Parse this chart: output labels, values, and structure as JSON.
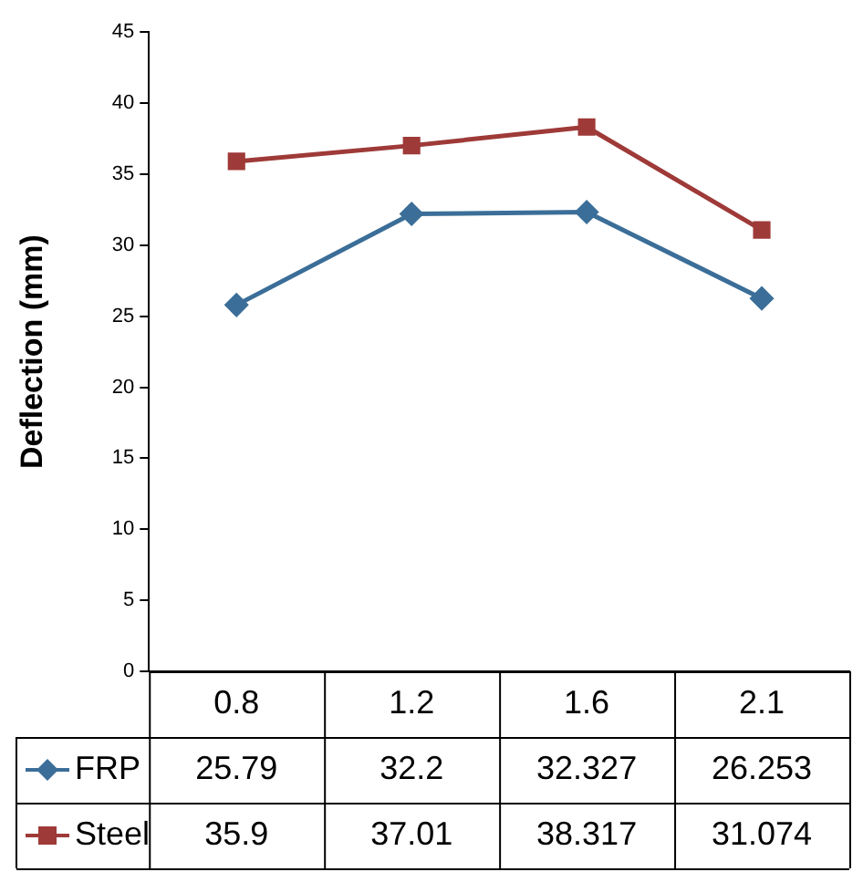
{
  "chart_data": {
    "type": "line",
    "ylabel": "Deflection (mm)",
    "categories": [
      "0.8",
      "1.2",
      "1.6",
      "2.1"
    ],
    "series": [
      {
        "name": "FRP",
        "color": "#3b6e98",
        "marker": "diamond",
        "values": [
          25.79,
          32.2,
          32.327,
          26.253
        ]
      },
      {
        "name": "Steel",
        "color": "#9e3a38",
        "marker": "square",
        "values": [
          35.9,
          37.01,
          38.317,
          31.074
        ]
      }
    ],
    "ylim": [
      0,
      45
    ],
    "yticks": [
      0,
      5,
      10,
      15,
      20,
      25,
      30,
      35,
      40,
      45
    ],
    "grid": false,
    "legend": "bottom",
    "data_labels": true
  }
}
